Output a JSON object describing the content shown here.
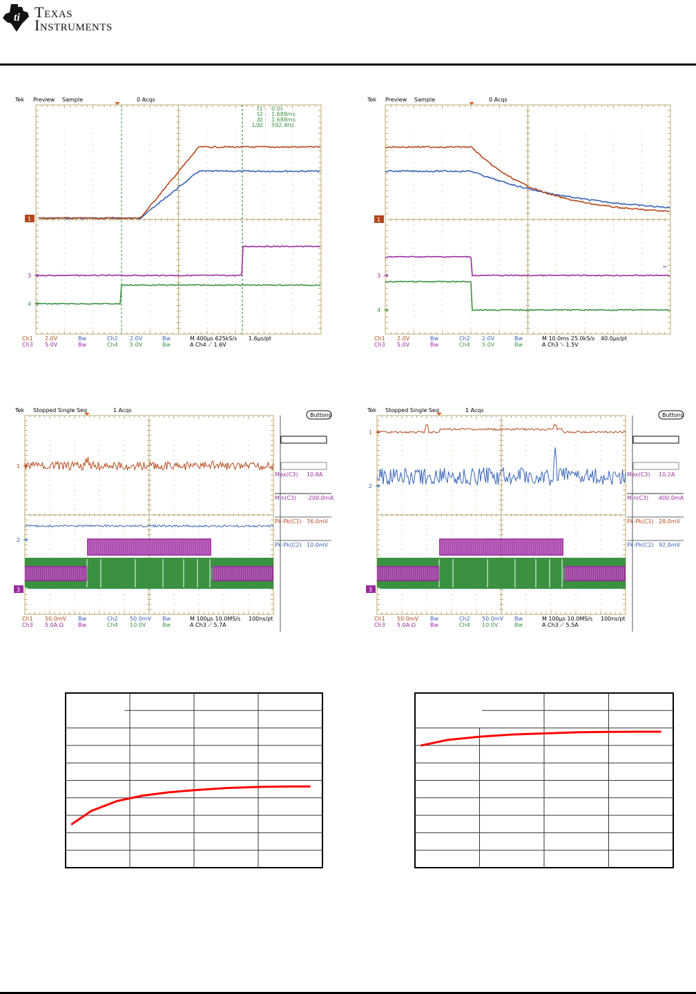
{
  "header": {
    "brand_line1": "Texas",
    "brand_line2": "Instruments",
    "logo_icon": "ti-logo-icon"
  },
  "colors": {
    "ch1": "#b5471b",
    "ch2": "#3562b8",
    "ch3": "#9b2aa0",
    "ch4": "#3a9140",
    "grid": "#b8a870",
    "cursor": "#3a9140",
    "trigger": "#e85c20",
    "curve": "#ff0000"
  },
  "scopes": [
    {
      "id": "scope-1",
      "status": [
        "Tek",
        "Preview",
        "Sample",
        "0 Acqs"
      ],
      "cursor_readout": [
        {
          "label": "t1 :",
          "value": "0.0s"
        },
        {
          "label": "t2 :",
          "value": "1.688ms"
        },
        {
          "label": "Δt :",
          "value": "1.688ms"
        },
        {
          "label": "1/Δt :",
          "value": "592.4Hz"
        }
      ],
      "markers": [
        "1",
        "3",
        "4"
      ],
      "footer_row1": [
        "Ch1",
        "2.0V",
        "Bw",
        "Ch2",
        "2.0V",
        "Bw",
        "M 400µs 625kS/s",
        "1.6µs/pt"
      ],
      "footer_row2": [
        "Ch3",
        "5.0V",
        "Bw",
        "Ch4",
        "5.0V",
        "Bw",
        "A  Ch4  ⟋  1.6V"
      ]
    },
    {
      "id": "scope-2",
      "status": [
        "Tek",
        "Preview",
        "Sample",
        "0 Acqs"
      ],
      "markers": [
        "1",
        "3",
        "4"
      ],
      "footer_row1": [
        "Ch1",
        "2.0V",
        "Bw",
        "Ch2",
        "2.0V",
        "Bw",
        "M 10.0ms 25.0kS/s",
        "40.0µs/pt"
      ],
      "footer_row2": [
        "Ch3",
        "5.0V",
        "Bw",
        "Ch4",
        "5.0V",
        "Bw",
        "A  Ch3  ⟍  1.5V"
      ]
    },
    {
      "id": "scope-3",
      "status": [
        "Tek",
        "Stopped  Single Seq",
        "",
        "1 Acqs"
      ],
      "buttons_label": "Buttons",
      "markers": [
        "1",
        "2",
        "3"
      ],
      "measurements": [
        {
          "label": "Max(C3)",
          "value": "10.8A"
        },
        {
          "label": "Min(C3)",
          "value": "-200.0mA"
        },
        {
          "label": "Pk-Pk(C1)",
          "value": "76.0mV"
        },
        {
          "label": "Pk-Pk(C2)",
          "value": "10.0mV"
        }
      ],
      "footer_row1": [
        "Ch1",
        "50.0mV",
        "Bw",
        "Ch2",
        "50.0mV",
        "Bw",
        "M 100µs 10.0MS/s",
        "100ns/pt"
      ],
      "footer_row2": [
        "Ch3",
        "5.0A  Ω",
        "Bw",
        "Ch4",
        "10.0V",
        "Bw",
        "A  Ch3  ⟋  5.7A"
      ]
    },
    {
      "id": "scope-4",
      "status": [
        "Tek",
        "Stopped  Single Seq",
        "",
        "1 Acqs"
      ],
      "buttons_label": "Buttons",
      "markers": [
        "1",
        "2",
        "3"
      ],
      "measurements": [
        {
          "label": "Max(C3)",
          "value": "10.2A"
        },
        {
          "label": "Min(C3)",
          "value": "400.0mA"
        },
        {
          "label": "Pk-Pk(C1)",
          "value": "28.0mV"
        },
        {
          "label": "Pk-Pk(C2)",
          "value": "92.0mV"
        }
      ],
      "footer_row1": [
        "Ch1",
        "50.0mV",
        "Bw",
        "Ch2",
        "50.0mV",
        "Bw",
        "M 100µs 10.0MS/s",
        "100ns/pt"
      ],
      "footer_row2": [
        "Ch3",
        "5.0A  Ω",
        "Bw",
        "Ch4",
        "10.0V",
        "Bw",
        "A  Ch3  ⟋  5.5A"
      ]
    }
  ],
  "chart_data": [
    {
      "type": "line",
      "title": "",
      "xlabel": "",
      "ylabel": "",
      "grid": true,
      "xlim": [
        0,
        4
      ],
      "ylim": [
        0,
        8
      ],
      "series": [
        {
          "name": "curve",
          "x": [
            0.1,
            0.4,
            0.8,
            1.2,
            1.6,
            2.0,
            2.5,
            3.0,
            3.5,
            3.8
          ],
          "y": [
            2.0,
            2.6,
            3.05,
            3.3,
            3.45,
            3.55,
            3.65,
            3.7,
            3.72,
            3.72
          ]
        }
      ]
    },
    {
      "type": "line",
      "title": "",
      "xlabel": "",
      "ylabel": "",
      "grid": true,
      "xlim": [
        0,
        4
      ],
      "ylim": [
        0,
        8
      ],
      "series": [
        {
          "name": "curve",
          "x": [
            0.1,
            0.5,
            1.0,
            1.5,
            2.0,
            2.5,
            3.0,
            3.5,
            3.8
          ],
          "y": [
            5.6,
            5.85,
            6.0,
            6.1,
            6.15,
            6.2,
            6.22,
            6.23,
            6.23
          ]
        }
      ]
    }
  ]
}
